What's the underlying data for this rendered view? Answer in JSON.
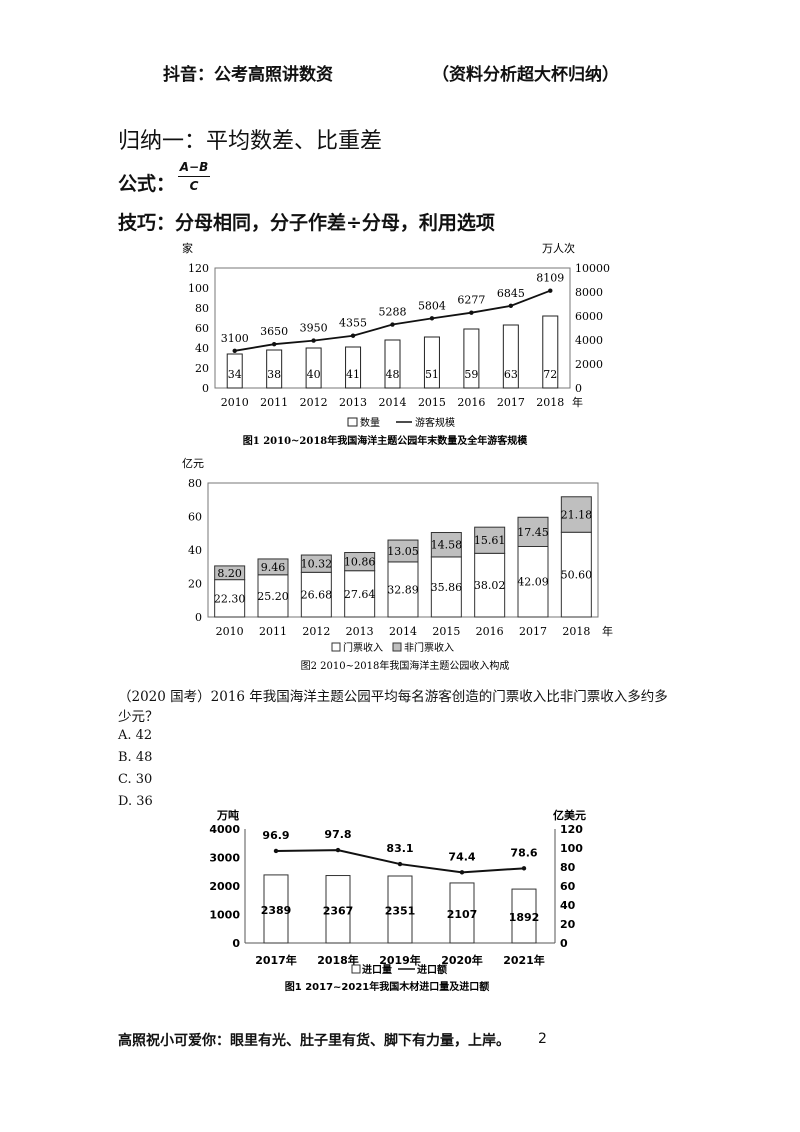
{
  "header": {
    "left": "抖音：公考高照讲数资",
    "right": "（资料分析超大杯归纳）"
  },
  "section_title": "归纳一：平均数差、比重差",
  "formula": {
    "label": "公式：",
    "numerator": "A−B",
    "denominator": "C"
  },
  "tip": "技巧：分母相同，分子作差÷分母，利用选项",
  "question": {
    "text_line1": "（2020 国考）2016 年我国海洋主题公园平均每名游客创造的门票收入比非门票收入多约多",
    "text_line2": "少元？",
    "options": [
      "A. 42",
      "B. 48",
      "C. 30",
      "D. 36"
    ]
  },
  "footer": {
    "text": "高照祝小可爱你：眼里有光、肚子里有货、脚下有力量，上岸。",
    "page": "2"
  },
  "colors": {
    "line": "#111111",
    "bar_fill": "#ffffff",
    "bar_gray": "#bfbfbf",
    "axis": "#555555"
  },
  "chart_data": [
    {
      "type": "bar",
      "title": "图1  2010~2018年我国海洋主题公园年末数量及全年游客规模",
      "ylabel": "家",
      "y2label": "万人次",
      "xunit": "年",
      "categories": [
        "2010",
        "2011",
        "2012",
        "2013",
        "2014",
        "2015",
        "2016",
        "2017",
        "2018"
      ],
      "ylim": [
        0,
        120
      ],
      "y2lim": [
        0,
        10000
      ],
      "yticks": [
        "0",
        "20",
        "40",
        "60",
        "80",
        "100",
        "120"
      ],
      "y2ticks": [
        "0",
        "2000",
        "4000",
        "6000",
        "8000",
        "10000"
      ],
      "series": [
        {
          "name": "数量",
          "kind": "bar",
          "values": [
            34,
            38,
            40,
            41,
            48,
            51,
            59,
            63,
            72
          ]
        },
        {
          "name": "游客规模",
          "kind": "line",
          "axis": "right",
          "values": [
            3100,
            3650,
            3950,
            4355,
            5288,
            5804,
            6277,
            6845,
            8109
          ]
        }
      ],
      "legend": "bottom"
    },
    {
      "type": "bar",
      "stacked": true,
      "title": "图2   2010~2018年我国海洋主题公园收入构成",
      "ylabel": "亿元",
      "xunit": "年",
      "categories": [
        "2010",
        "2011",
        "2012",
        "2013",
        "2014",
        "2015",
        "2016",
        "2017",
        "2018"
      ],
      "ylim": [
        0,
        80
      ],
      "yticks": [
        "0",
        "20",
        "40",
        "60",
        "80"
      ],
      "series": [
        {
          "name": "门票收入",
          "values": [
            22.3,
            25.2,
            26.68,
            27.64,
            32.89,
            35.86,
            38.02,
            42.09,
            50.6
          ],
          "labels": [
            "22.30",
            "25.20",
            "26.68",
            "27.64",
            "32.89",
            "35.86",
            "38.02",
            "42.09",
            "50.60"
          ]
        },
        {
          "name": "非门票收入",
          "values": [
            8.2,
            9.46,
            10.32,
            10.86,
            13.05,
            14.58,
            15.61,
            17.45,
            21.18
          ],
          "labels": [
            "8.20",
            "9.46",
            "10.32",
            "10.86",
            "13.05",
            "14.58",
            "15.61",
            "17.45",
            "21.18"
          ]
        }
      ],
      "legend": "bottom"
    },
    {
      "type": "bar",
      "title": "图1  2017~2021年我国木材进口量及进口额",
      "ylabel": "万吨",
      "y2label": "亿美元",
      "categories": [
        "2017年",
        "2018年",
        "2019年",
        "2020年",
        "2021年"
      ],
      "ylim": [
        0,
        4000
      ],
      "y2lim": [
        0,
        120
      ],
      "yticks": [
        "0",
        "1000",
        "2000",
        "3000",
        "4000"
      ],
      "y2ticks": [
        "0",
        "20",
        "40",
        "60",
        "80",
        "100",
        "120"
      ],
      "series": [
        {
          "name": "进口量",
          "kind": "bar",
          "values": [
            2389,
            2367,
            2351,
            2107,
            1892
          ]
        },
        {
          "name": "进口额",
          "kind": "line",
          "axis": "right",
          "values": [
            96.9,
            97.8,
            83.1,
            74.4,
            78.6
          ]
        }
      ],
      "legend": "bottom"
    }
  ]
}
